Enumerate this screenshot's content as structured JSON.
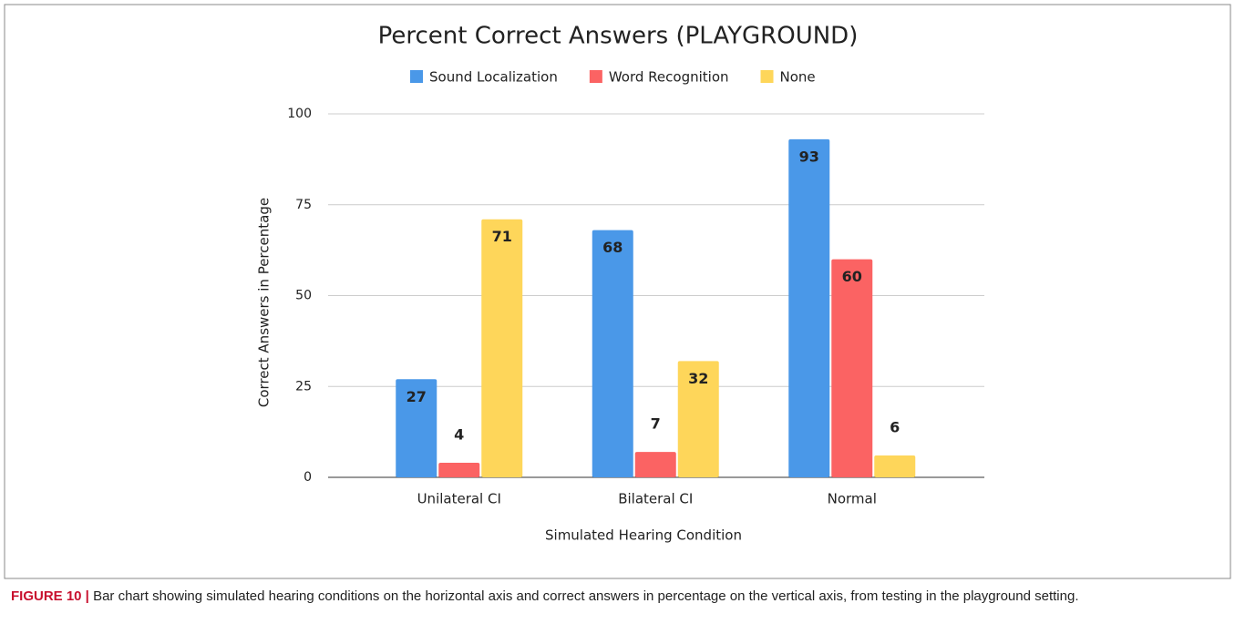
{
  "chart_data": {
    "type": "bar",
    "title": "Percent Correct Answers (PLAYGROUND)",
    "x_label": "Simulated Hearing Condition",
    "y_label": "Correct Answers in Percentage",
    "categories": [
      "Unilateral CI",
      "Bilateral CI",
      "Normal"
    ],
    "series": [
      {
        "name": "Sound Localization",
        "color": "#4a98e8",
        "values": [
          27,
          68,
          93
        ]
      },
      {
        "name": "Word Recognition",
        "color": "#fb6363",
        "values": [
          4,
          7,
          60
        ]
      },
      {
        "name": "None",
        "color": "#fed65a",
        "values": [
          71,
          32,
          6
        ]
      }
    ],
    "ylim": [
      0,
      100
    ],
    "yticks": [
      0,
      25,
      50,
      75,
      100
    ],
    "grid": true
  },
  "caption": {
    "label": "FIGURE 10 |",
    "text": "Bar chart showing simulated hearing conditions on the horizontal axis and correct answers in percentage on the vertical axis, from testing in the playground setting."
  }
}
